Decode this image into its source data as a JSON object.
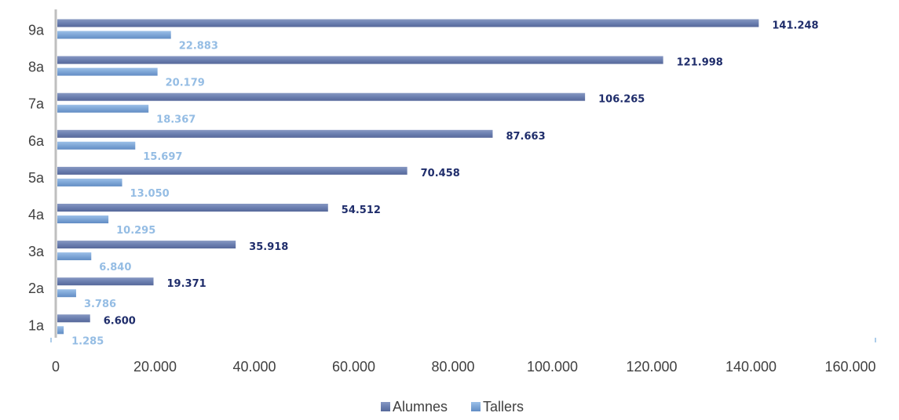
{
  "chart_data": {
    "type": "bar",
    "orientation": "horizontal",
    "categories": [
      "1a",
      "2a",
      "3a",
      "4a",
      "5a",
      "6a",
      "7a",
      "8a",
      "9a"
    ],
    "series": [
      {
        "name": "Alumnes",
        "values": [
          6600,
          19371,
          35918,
          54512,
          70458,
          87663,
          106265,
          121998,
          141248
        ],
        "labels": [
          "6.600",
          "19.371",
          "35.918",
          "54.512",
          "70.458",
          "87.663",
          "106.265",
          "121.998",
          "141.248"
        ],
        "color": "#6f84b3",
        "label_color": "#1f2d6b"
      },
      {
        "name": "Tallers",
        "values": [
          1285,
          3786,
          6840,
          10295,
          13050,
          15697,
          18367,
          20179,
          22883
        ],
        "labels": [
          "1.285",
          "3.786",
          "6.840",
          "10.295",
          "13.050",
          "15.697",
          "18.367",
          "20.179",
          "22.883"
        ],
        "color": "#7ea6d6",
        "label_color": "#95bde4"
      }
    ],
    "x_ticks": [
      "0",
      "20.000",
      "40.000",
      "60.000",
      "80.000",
      "100.000",
      "120.000",
      "140.000",
      "160.000"
    ],
    "xlim": [
      0,
      160000
    ],
    "grid": false,
    "legend_position": "bottom"
  }
}
